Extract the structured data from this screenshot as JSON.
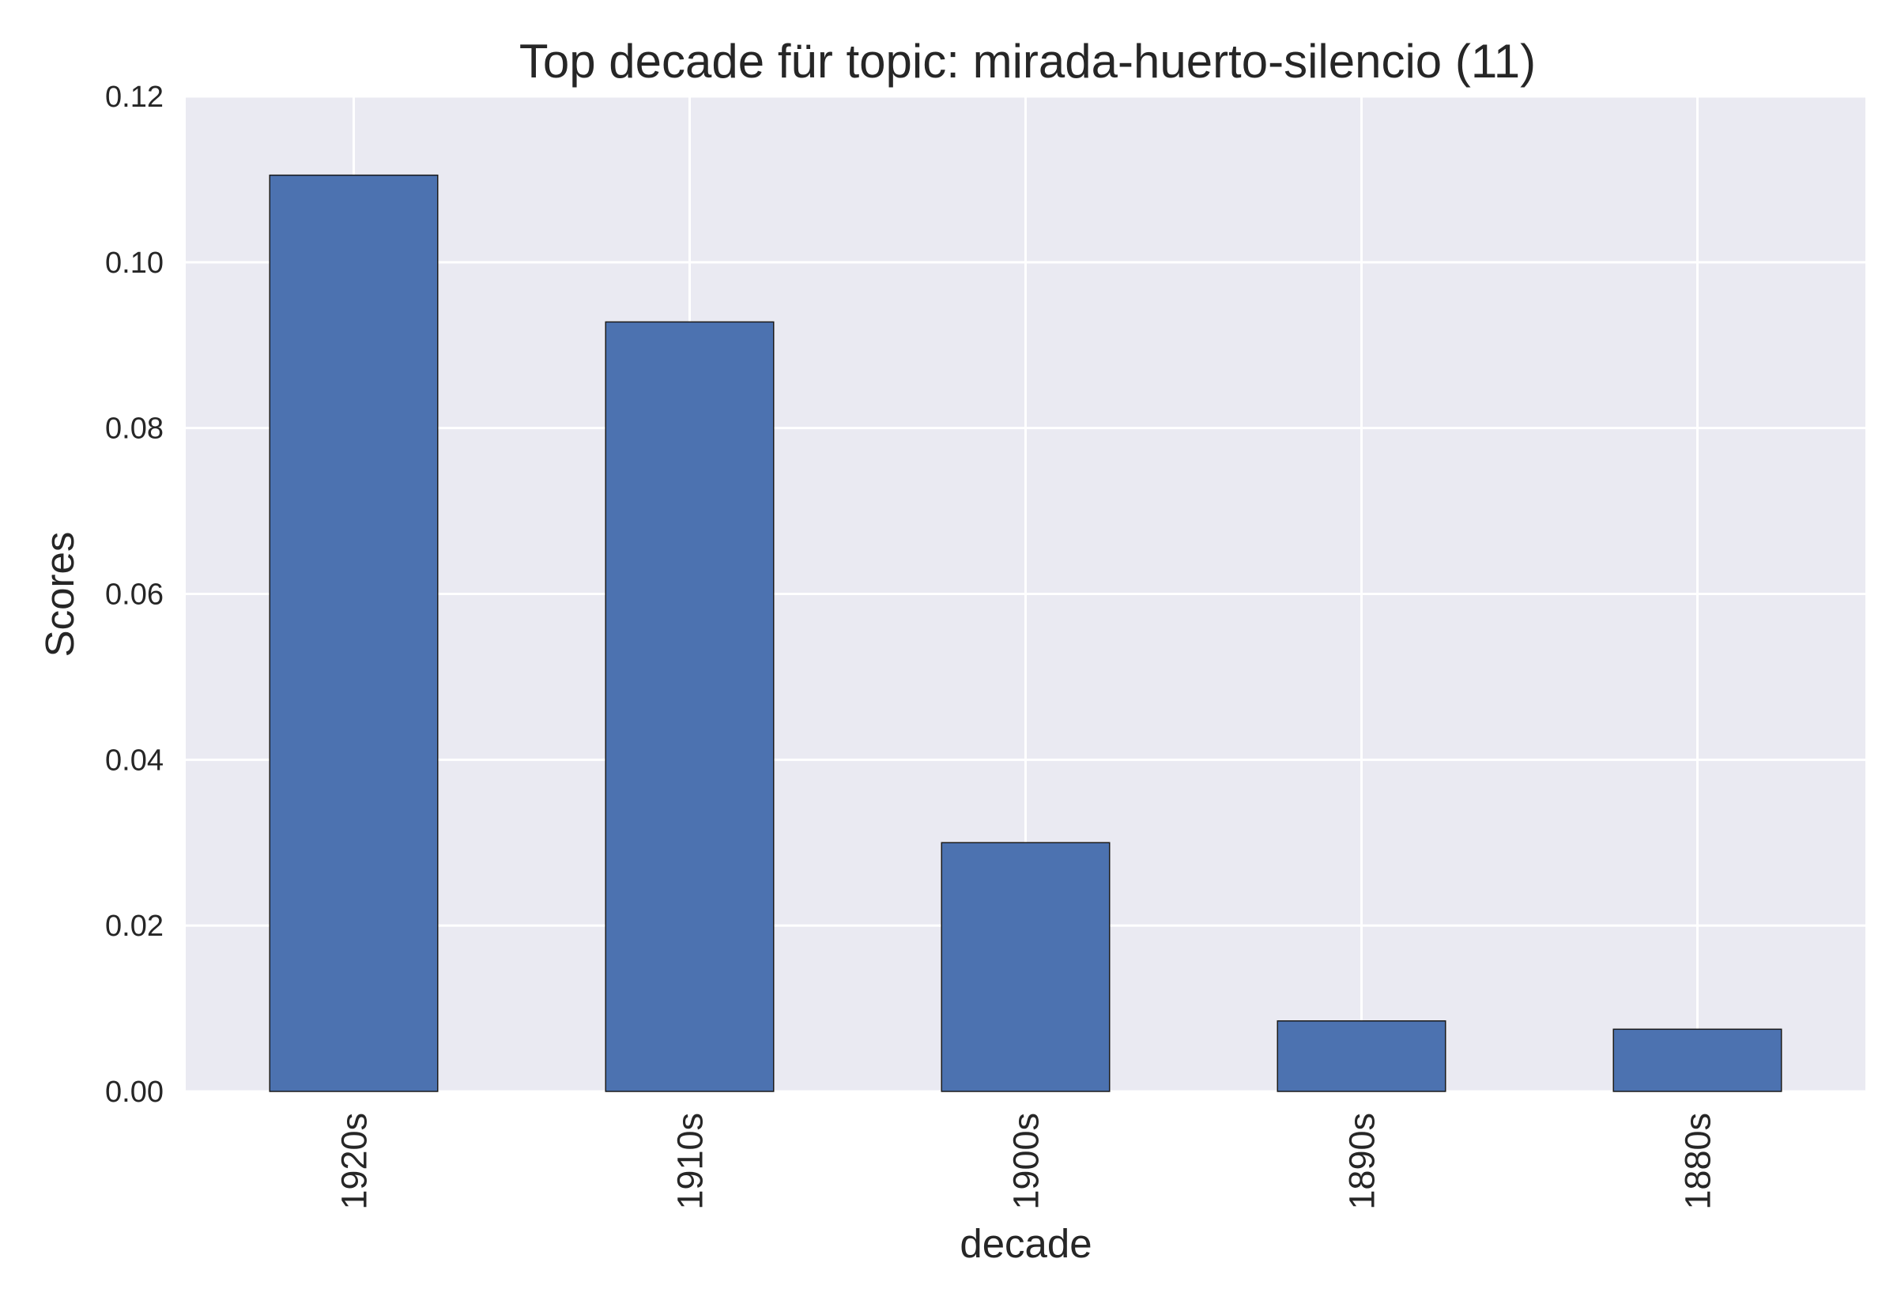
{
  "chart_data": {
    "type": "bar",
    "title": "Top decade für topic: mirada-huerto-silencio (11)",
    "xlabel": "decade",
    "ylabel": "Scores",
    "categories": [
      "1920s",
      "1910s",
      "1900s",
      "1890s",
      "1880s"
    ],
    "values": [
      0.1105,
      0.0928,
      0.03,
      0.0085,
      0.0075
    ],
    "ylim": [
      0,
      0.12
    ],
    "yticks": [
      0.0,
      0.02,
      0.04,
      0.06,
      0.08,
      0.1,
      0.12
    ],
    "ytick_labels": [
      "0.00",
      "0.02",
      "0.04",
      "0.06",
      "0.08",
      "0.10",
      "0.12"
    ],
    "grid": true,
    "legend": "none",
    "colors": {
      "bar": "#4c72b0",
      "bar_edge": "#1a1a1a",
      "plot_background": "#eaeaf2",
      "grid": "#ffffff",
      "text": "#262626"
    }
  }
}
